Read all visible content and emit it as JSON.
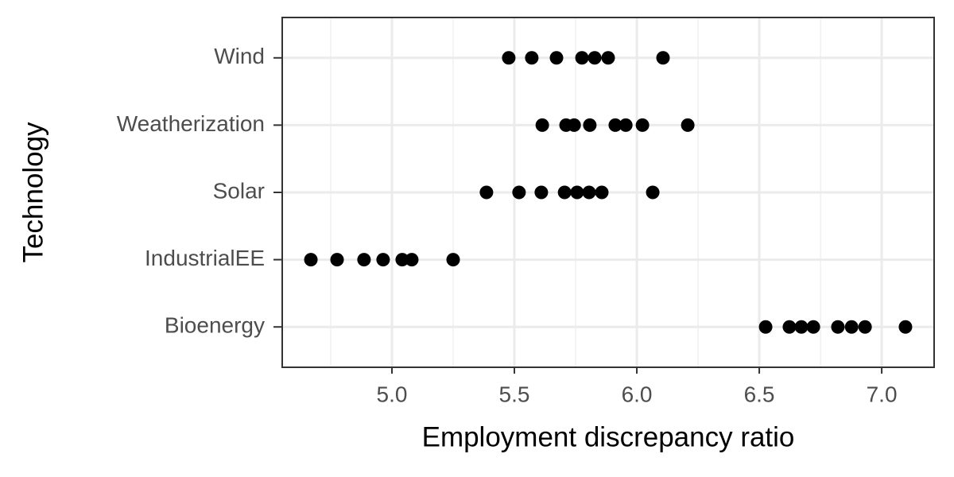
{
  "chart_data": {
    "type": "strip",
    "x_label": "Employment discrepancy ratio",
    "y_label": "Technology",
    "categories": [
      "Bioenergy",
      "IndustrialEE",
      "Solar",
      "Weatherization",
      "Wind"
    ],
    "values": [
      [
        6.526,
        6.623,
        6.672,
        6.721,
        6.821,
        6.877,
        6.932,
        7.097
      ],
      [
        4.669,
        4.776,
        4.886,
        4.964,
        5.042,
        5.081,
        5.25
      ],
      [
        5.386,
        5.519,
        5.61,
        5.705,
        5.756,
        5.805,
        5.857,
        6.065
      ],
      [
        5.614,
        5.711,
        5.744,
        5.808,
        5.912,
        5.955,
        6.023,
        6.208
      ],
      [
        5.477,
        5.571,
        5.672,
        5.776,
        5.828,
        5.883,
        6.107
      ]
    ],
    "color": "#000000",
    "xlim": [
      4.552,
      7.214
    ],
    "xticks": [
      {
        "value": 5,
        "label": "5.0"
      },
      5.5,
      {
        "value": 6,
        "label": "6.0"
      },
      6.5,
      {
        "value": 7,
        "label": "7.0"
      }
    ],
    "xminor": [
      4.75,
      5.25,
      5.75,
      6.25,
      6.75
    ],
    "grid": true
  }
}
